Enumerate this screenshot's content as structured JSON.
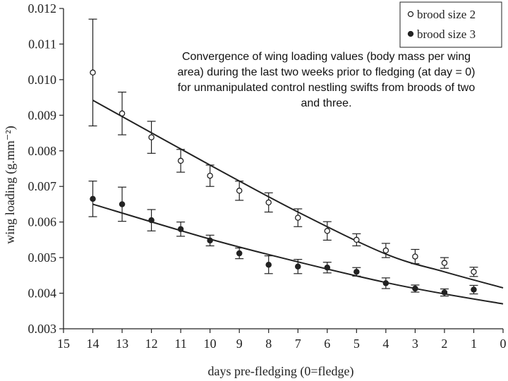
{
  "caption": "Convergence of wing loading values (body mass per wing area) during the last two weeks prior to fledging (at day = 0) for unmanipulated control nestling swifts from broods of two and three.",
  "chart_data": {
    "type": "scatter",
    "xlabel": "days pre-fledging (0=fledge)",
    "ylabel": "wing loading (g.mm⁻²)",
    "xlim": [
      15,
      0
    ],
    "ylim": [
      0.003,
      0.012
    ],
    "x_reversed": true,
    "x_ticks": [
      15,
      14,
      13,
      12,
      11,
      10,
      9,
      8,
      7,
      6,
      5,
      4,
      3,
      2,
      1,
      0
    ],
    "x_tick_labels": [
      "15",
      "14",
      "13",
      "12",
      "11",
      "10",
      "9",
      "8",
      "7",
      "6",
      "5",
      "4",
      "3",
      "2",
      "1",
      "0"
    ],
    "y_ticks": [
      0.003,
      0.004,
      0.005,
      0.006,
      0.007,
      0.008,
      0.009,
      0.01,
      0.011,
      0.012
    ],
    "y_tick_labels": [
      "0.003",
      "0.004",
      "0.005",
      "0.006",
      "0.007",
      "0.008",
      "0.009",
      "0.010",
      "0.011",
      "0.012"
    ],
    "legend_position": "top-right",
    "grid": false,
    "series": [
      {
        "name": "brood size 2",
        "marker": "open-circle",
        "x": [
          14,
          13,
          12,
          11,
          10,
          9,
          8,
          7,
          6,
          5,
          4,
          3,
          2,
          1
        ],
        "y": [
          0.0102,
          0.00905,
          0.00838,
          0.00772,
          0.0073,
          0.00688,
          0.00655,
          0.00612,
          0.00575,
          0.0055,
          0.0052,
          0.00503,
          0.00485,
          0.0046
        ],
        "err": [
          0.0015,
          0.0006,
          0.00045,
          0.00032,
          0.0003,
          0.00027,
          0.00027,
          0.00025,
          0.00026,
          0.00017,
          0.0002,
          0.0002,
          0.00015,
          0.00013
        ],
        "fit": {
          "x": [
            14,
            10,
            7,
            4,
            2,
            0
          ],
          "y": [
            0.00942,
            0.0076,
            0.00628,
            0.0051,
            0.0046,
            0.00415
          ]
        }
      },
      {
        "name": "brood size 3",
        "marker": "filled-circle",
        "x": [
          14,
          13,
          12,
          11,
          10,
          9,
          8,
          7,
          6,
          5,
          4,
          3,
          2,
          1
        ],
        "y": [
          0.00665,
          0.0065,
          0.00605,
          0.0058,
          0.00548,
          0.00512,
          0.0048,
          0.00475,
          0.00472,
          0.0046,
          0.00428,
          0.00413,
          0.00402,
          0.0041
        ],
        "err": [
          0.0005,
          0.00048,
          0.0003,
          0.0002,
          0.00015,
          0.00015,
          0.00025,
          0.0002,
          0.00015,
          0.00012,
          0.00015,
          0.0001,
          0.0001,
          0.00012
        ],
        "fit": {
          "x": [
            14,
            10,
            7,
            4,
            2,
            0
          ],
          "y": [
            0.0065,
            0.00552,
            0.00488,
            0.0043,
            0.00398,
            0.0037
          ]
        }
      }
    ]
  },
  "legend": {
    "items": [
      {
        "label": "brood size 2",
        "marker": "open-circle"
      },
      {
        "label": "brood size 3",
        "marker": "filled-circle"
      }
    ]
  }
}
